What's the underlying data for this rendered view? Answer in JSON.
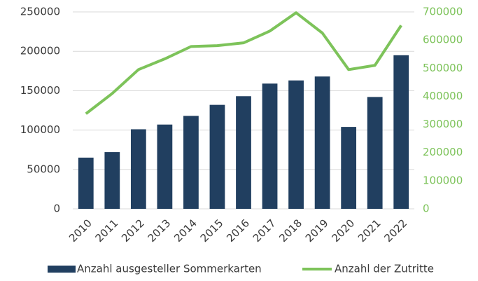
{
  "chart_data": {
    "type": "bar",
    "categories": [
      "2010",
      "2011",
      "2012",
      "2013",
      "2014",
      "2015",
      "2016",
      "2017",
      "2018",
      "2019",
      "2020",
      "2021",
      "2022"
    ],
    "series": [
      {
        "name": "Anzahl ausgesteller Sommerkarten",
        "color": "#213f60",
        "type": "bar",
        "values": [
          65000,
          72000,
          101000,
          107000,
          118000,
          132000,
          143000,
          159000,
          163000,
          168000,
          104000,
          142000,
          195000
        ]
      },
      {
        "name": "Anzahl der Zutritte",
        "color": "#7dc35a",
        "type": "line",
        "axis": "y2",
        "values": [
          338000,
          410000,
          495000,
          533000,
          577000,
          580000,
          590000,
          632000,
          697000,
          625000,
          495000,
          510000,
          652000
        ]
      }
    ],
    "ylim": [
      0,
      250000
    ],
    "yticks": [
      0,
      50000,
      100000,
      150000,
      200000,
      250000
    ],
    "y2lim": [
      0,
      700000
    ],
    "y2ticks": [
      0,
      100000,
      200000,
      300000,
      400000,
      500000,
      600000,
      700000
    ],
    "grid": true,
    "legend": "bottom"
  }
}
